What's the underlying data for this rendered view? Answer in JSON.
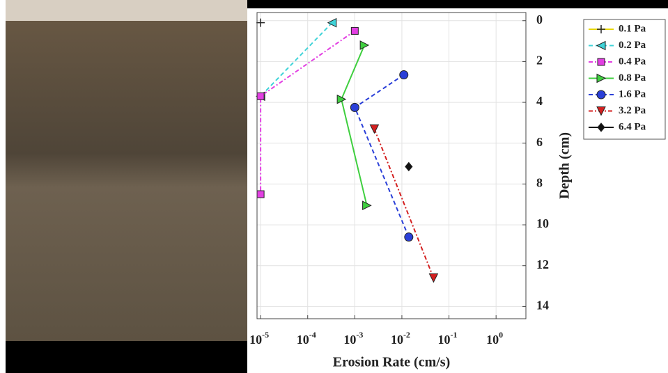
{
  "chart_data": {
    "type": "line",
    "xlabel": "Erosion Rate (cm/s)",
    "ylabel": "Depth (cm)",
    "xscale": "log",
    "xlim": [
      8.4e-06,
      4.3
    ],
    "ylim": [
      -0.4,
      14.6
    ],
    "y_inverted": true,
    "xticks": [
      {
        "value": 1e-05,
        "label": "10",
        "exponent": "-5"
      },
      {
        "value": 0.0001,
        "label": "10",
        "exponent": "-4"
      },
      {
        "value": 0.001,
        "label": "10",
        "exponent": "-3"
      },
      {
        "value": 0.01,
        "label": "10",
        "exponent": "-2"
      },
      {
        "value": 0.1,
        "label": "10",
        "exponent": "-1"
      },
      {
        "value": 1,
        "label": "10",
        "exponent": "0"
      }
    ],
    "yticks": [
      0,
      2,
      4,
      6,
      8,
      10,
      12,
      14
    ],
    "grid": true,
    "legend": "outside-right",
    "series": [
      {
        "name": "0.1 Pa",
        "color": "#e6d600",
        "marker": "plus",
        "linestyle": "solid",
        "x": [
          1e-05
        ],
        "values": [
          0.1
        ]
      },
      {
        "name": "0.2 Pa",
        "color": "#3fd3d8",
        "marker": "triangle-left",
        "linestyle": "dashed",
        "x": [
          0.00033,
          1e-05
        ],
        "values": [
          0.1,
          3.7
        ]
      },
      {
        "name": "0.4 Pa",
        "color": "#e23fe2",
        "marker": "square",
        "linestyle": "dashdot",
        "x": [
          0.001,
          1e-05,
          1e-05
        ],
        "values": [
          0.5,
          3.7,
          8.5
        ]
      },
      {
        "name": "0.8 Pa",
        "color": "#3fcf3f",
        "marker": "triangle-right",
        "linestyle": "solid",
        "x": [
          0.0016,
          0.00052,
          0.0018
        ],
        "values": [
          1.2,
          3.85,
          9.05
        ]
      },
      {
        "name": "1.6 Pa",
        "color": "#2a3fd8",
        "marker": "circle",
        "linestyle": "dashed",
        "x": [
          0.011,
          0.001,
          0.014
        ],
        "values": [
          2.65,
          4.25,
          10.6
        ]
      },
      {
        "name": "3.2 Pa",
        "color": "#d42020",
        "marker": "triangle-down",
        "linestyle": "dashdot",
        "x": [
          0.0026,
          0.047
        ],
        "values": [
          5.3,
          12.6
        ]
      },
      {
        "name": "6.4 Pa",
        "color": "#111111",
        "marker": "diamond",
        "linestyle": "solid",
        "x": [
          0.014
        ],
        "values": [
          7.15
        ]
      }
    ]
  }
}
